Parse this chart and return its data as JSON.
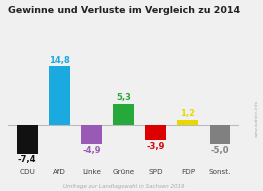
{
  "title": "Gewinne und Verluste im Vergleich zu 2014",
  "subtitle": "Umfrage zur Landtagswahl in Sachsen 2019",
  "watermark": "www.wahlen.info",
  "categories": [
    "CDU",
    "AfD",
    "Linke",
    "Grüne",
    "SPD",
    "FDP",
    "Sonst."
  ],
  "values": [
    -7.4,
    14.8,
    -4.9,
    5.3,
    -3.9,
    1.2,
    -5.0
  ],
  "bar_colors": [
    "#111111",
    "#1aaae0",
    "#9b59b6",
    "#27a83a",
    "#dd0000",
    "#e8d800",
    "#808080"
  ],
  "label_colors": [
    "#111111",
    "#1aaae0",
    "#9b59b6",
    "#27a83a",
    "#dd0000",
    "#e8d800",
    "#808080"
  ],
  "background_color": "#f0f0f0",
  "title_fontsize": 6.8,
  "subtitle_fontsize": 4.0,
  "label_fontsize": 6.0,
  "tick_fontsize": 5.2,
  "watermark_fontsize": 3.2,
  "ylim": [
    -11,
    18
  ],
  "bar_width": 0.65
}
